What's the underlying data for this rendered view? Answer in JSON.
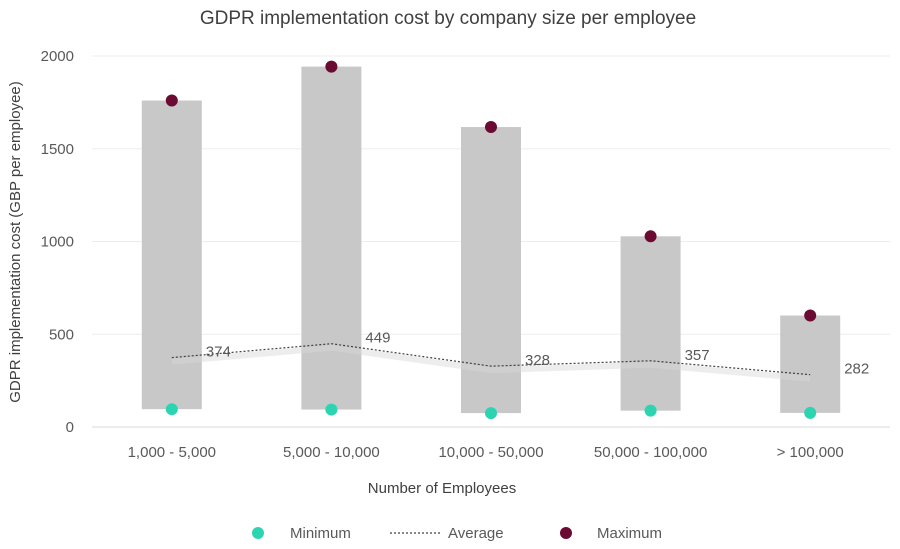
{
  "chart_data": {
    "type": "range-bar",
    "title": "GDPR implementation cost by company size per employee",
    "xlabel": "Number of Employees",
    "ylabel": "GDPR implementation cost (GBP per employee)",
    "ylim": [
      0,
      2000
    ],
    "yticks": [
      "0",
      "500",
      "1000",
      "1500",
      "2000"
    ],
    "grid": true,
    "categories": [
      "1,000 - 5,000",
      "5,000 - 10,000",
      "10,000 - 50,000",
      "50,000 - 100,000",
      "> 100,000"
    ],
    "series": [
      {
        "name": "Minimum",
        "values": [
          96,
          94,
          75,
          88,
          76
        ],
        "color": "#2dd4b2"
      },
      {
        "name": "Average",
        "values": [
          374,
          449,
          328,
          357,
          282
        ],
        "color": "#404040"
      },
      {
        "name": "Maximum",
        "values": [
          1760,
          1943,
          1617,
          1028,
          601
        ],
        "color": "#6b0a33"
      }
    ],
    "data_labels": [
      "374",
      "449",
      "328",
      "357",
      "282"
    ],
    "range_bar_color": "#c8c8c8",
    "legend": [
      "Minimum",
      "Average",
      "Maximum"
    ],
    "legend_position": "bottom"
  }
}
